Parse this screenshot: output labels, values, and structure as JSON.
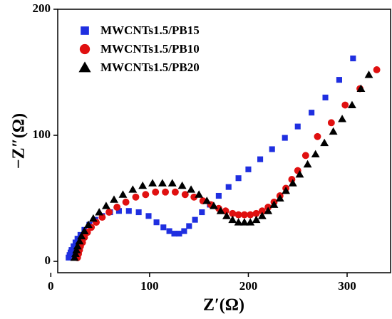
{
  "chart_data": {
    "type": "scatter",
    "xlabel": "Z′(Ω)",
    "ylabel": "−Z″(Ω)",
    "xlim": [
      7,
      344
    ],
    "xticks": [
      0,
      100,
      200,
      300
    ],
    "ylim": [
      -9,
      200
    ],
    "yticks": [
      0,
      100,
      200
    ],
    "legend": "upper left",
    "grid": false,
    "series": [
      {
        "name": "MWCNTs1.5/PB15",
        "color": "#1f2fe0",
        "marker": "square",
        "x": [
          18,
          19,
          20,
          21,
          23,
          25,
          27,
          30,
          34,
          39,
          45,
          52,
          60,
          69,
          79,
          89,
          99,
          107,
          114,
          120,
          125,
          130,
          135,
          140,
          146,
          153,
          161,
          170,
          180,
          190,
          200,
          212,
          224,
          237,
          250,
          264,
          278,
          292,
          306
        ],
        "values": [
          3,
          5,
          7,
          9,
          12,
          15,
          18,
          21,
          25,
          29,
          33,
          36,
          39,
          40,
          40,
          39,
          36,
          31,
          27,
          24,
          22,
          22,
          24,
          28,
          33,
          39,
          45,
          52,
          59,
          66,
          73,
          81,
          89,
          98,
          107,
          118,
          130,
          144,
          161
        ]
      },
      {
        "name": "MWCNTs1.5/PB10",
        "color": "#e01010",
        "marker": "circle",
        "x": [
          27,
          28,
          29,
          30,
          32,
          34,
          37,
          41,
          46,
          52,
          59,
          67,
          76,
          86,
          96,
          106,
          116,
          126,
          136,
          145,
          154,
          162,
          170,
          177,
          184,
          190,
          196,
          202,
          208,
          214,
          220,
          226,
          232,
          238,
          244,
          250,
          258,
          270,
          284,
          298,
          313,
          330
        ],
        "values": [
          3,
          6,
          9,
          12,
          15,
          19,
          23,
          27,
          31,
          35,
          39,
          43,
          47,
          51,
          53,
          55,
          55,
          55,
          53,
          51,
          48,
          45,
          42,
          40,
          38,
          37,
          37,
          37,
          38,
          40,
          43,
          47,
          52,
          58,
          65,
          72,
          84,
          99,
          110,
          124,
          137,
          152
        ]
      },
      {
        "name": "MWCNTs1.5/PB20",
        "color": "#000000",
        "marker": "triangle",
        "x": [
          24,
          25,
          26,
          27,
          29,
          31,
          34,
          38,
          43,
          49,
          56,
          64,
          73,
          83,
          93,
          103,
          113,
          123,
          133,
          142,
          150,
          158,
          165,
          172,
          178,
          184,
          190,
          196,
          202,
          208,
          214,
          220,
          226,
          232,
          238,
          245,
          252,
          260,
          268,
          277,
          286,
          295,
          305,
          314,
          322
        ],
        "values": [
          3,
          6,
          9,
          12,
          16,
          20,
          24,
          29,
          34,
          39,
          44,
          49,
          53,
          57,
          60,
          62,
          62,
          62,
          60,
          57,
          53,
          48,
          44,
          40,
          36,
          33,
          31,
          31,
          31,
          33,
          36,
          40,
          45,
          50,
          56,
          62,
          69,
          77,
          85,
          94,
          103,
          113,
          124,
          137,
          148
        ]
      }
    ]
  }
}
